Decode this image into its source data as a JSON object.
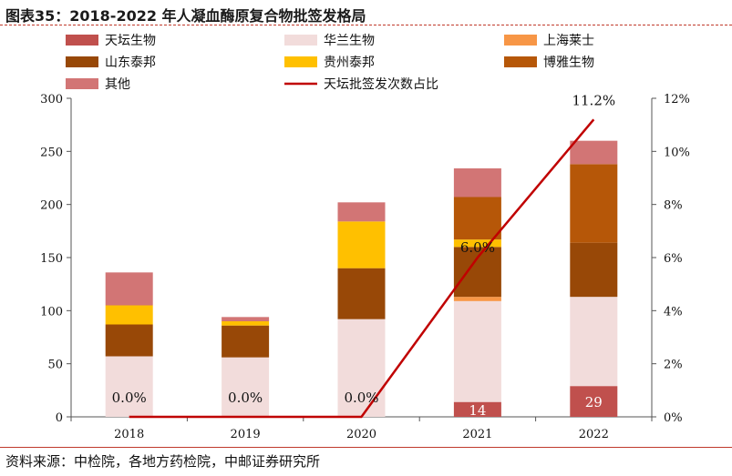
{
  "title": "图表35：2018-2022 年人凝血酶原复合物批签发格局",
  "source": "资料来源：中检院，各地方药检院，中邮证券研究所",
  "chart_data": {
    "type": "bar",
    "stacked": true,
    "categories": [
      "2018",
      "2019",
      "2020",
      "2021",
      "2022"
    ],
    "series": [
      {
        "name": "天坛生物",
        "values": [
          0,
          0,
          0,
          14,
          29
        ],
        "color": "#c0504d"
      },
      {
        "name": "华兰生物",
        "values": [
          57,
          56,
          92,
          95,
          84
        ],
        "color": "#f2dcdb"
      },
      {
        "name": "上海莱士",
        "values": [
          0,
          0,
          0,
          4,
          0
        ],
        "color": "#f79646"
      },
      {
        "name": "山东泰邦",
        "values": [
          30,
          30,
          48,
          47,
          51
        ],
        "color": "#984807"
      },
      {
        "name": "贵州泰邦",
        "values": [
          18,
          4,
          44,
          7,
          0
        ],
        "color": "#ffc000"
      },
      {
        "name": "博雅生物",
        "values": [
          0,
          0,
          0,
          40,
          74
        ],
        "color": "#b65708"
      },
      {
        "name": "其他",
        "values": [
          31,
          4,
          18,
          27,
          22
        ],
        "color": "#d27575"
      }
    ],
    "line": {
      "name": "天坛批签发次数占比",
      "values": [
        0.0,
        0.0,
        0.0,
        6.0,
        11.2
      ],
      "color": "#c00000",
      "axis": "right"
    },
    "bar_labels": {
      "series": "天坛生物",
      "values": [
        "",
        "",
        "",
        "14",
        "29"
      ]
    },
    "line_labels": [
      "0.0%",
      "0.0%",
      "0.0%",
      "6.0%",
      "11.2%"
    ],
    "ylim": [
      0,
      300
    ],
    "yticks": [
      "0",
      "50",
      "100",
      "150",
      "200",
      "250",
      "300"
    ],
    "y2lim": [
      0,
      12
    ],
    "y2ticks": [
      "0%",
      "2%",
      "4%",
      "6%",
      "8%",
      "10%",
      "12%"
    ],
    "legend_position": "top"
  }
}
